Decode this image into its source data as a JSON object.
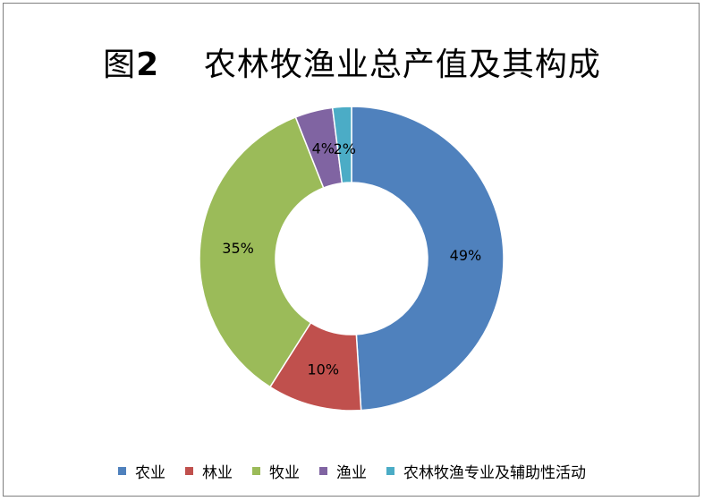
{
  "title": {
    "prefix": "图",
    "number": "2",
    "text": "农林牧渔业总产值及其构成"
  },
  "chart_data": {
    "type": "pie",
    "style": "doughnut",
    "categories": [
      "农业",
      "林业",
      "牧业",
      "渔业",
      "农林牧渔专业及辅助性活动"
    ],
    "values": [
      49,
      10,
      35,
      4,
      2
    ],
    "labels": [
      "49%",
      "10%",
      "35%",
      "4%",
      "2%"
    ],
    "unit": "%",
    "colors": [
      "#4f81bd",
      "#c0504d",
      "#9bbb59",
      "#8064a2",
      "#4bacc6"
    ],
    "legend_position": "bottom",
    "start_angle": "top, clockwise"
  }
}
